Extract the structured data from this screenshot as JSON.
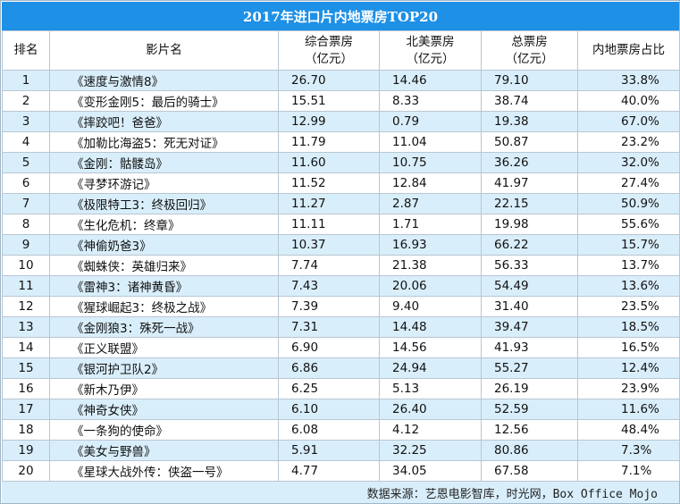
{
  "title": "2017年进口片内地票房TOP20",
  "headers": {
    "rank": "排名",
    "film": "影片名",
    "total_cn_l1": "综合票房",
    "total_cn_l2": "（亿元）",
    "na_l1": "北美票房",
    "na_l2": "（亿元）",
    "world_l1": "总票房",
    "world_l2": "（亿元）",
    "share": "内地票房占比"
  },
  "rows": [
    {
      "rank": "1",
      "film": "《速度与激情8》",
      "cn": "26.70",
      "na": "14.46",
      "total": "79.10",
      "share": "33.8%"
    },
    {
      "rank": "2",
      "film": "《变形金刚5：最后的骑士》",
      "cn": "15.51",
      "na": "8.33",
      "total": "38.74",
      "share": "40.0%"
    },
    {
      "rank": "3",
      "film": "《摔跤吧！爸爸》",
      "cn": "12.99",
      "na": "0.79",
      "total": "19.38",
      "share": "67.0%"
    },
    {
      "rank": "4",
      "film": "《加勒比海盗5：死无对证》",
      "cn": "11.79",
      "na": "11.04",
      "total": "50.87",
      "share": "23.2%"
    },
    {
      "rank": "5",
      "film": "《金刚：骷髅岛》",
      "cn": "11.60",
      "na": "10.75",
      "total": "36.26",
      "share": "32.0%"
    },
    {
      "rank": "6",
      "film": "《寻梦环游记》",
      "cn": "11.52",
      "na": "12.84",
      "total": "41.97",
      "share": "27.4%"
    },
    {
      "rank": "7",
      "film": "《极限特工3：终极回归》",
      "cn": "11.27",
      "na": "2.87",
      "total": "22.15",
      "share": "50.9%"
    },
    {
      "rank": "8",
      "film": "《生化危机：终章》",
      "cn": "11.11",
      "na": "1.71",
      "total": "19.98",
      "share": "55.6%"
    },
    {
      "rank": "9",
      "film": "《神偷奶爸3》",
      "cn": "10.37",
      "na": "16.93",
      "total": "66.22",
      "share": "15.7%"
    },
    {
      "rank": "10",
      "film": "《蜘蛛侠：英雄归来》",
      "cn": "7.74",
      "na": "21.38",
      "total": "56.33",
      "share": "13.7%"
    },
    {
      "rank": "11",
      "film": "《雷神3：诸神黄昏》",
      "cn": "7.43",
      "na": "20.06",
      "total": "54.49",
      "share": "13.6%"
    },
    {
      "rank": "12",
      "film": "《猩球崛起3：终极之战》",
      "cn": "7.39",
      "na": "9.40",
      "total": "31.40",
      "share": "23.5%"
    },
    {
      "rank": "13",
      "film": "《金刚狼3：殊死一战》",
      "cn": "7.31",
      "na": "14.48",
      "total": "39.47",
      "share": "18.5%"
    },
    {
      "rank": "14",
      "film": "《正义联盟》",
      "cn": "6.90",
      "na": "14.56",
      "total": "41.93",
      "share": "16.5%"
    },
    {
      "rank": "15",
      "film": "《银河护卫队2》",
      "cn": "6.86",
      "na": "24.94",
      "total": "55.27",
      "share": "12.4%"
    },
    {
      "rank": "16",
      "film": "《新木乃伊》",
      "cn": "6.25",
      "na": "5.13",
      "total": "26.19",
      "share": "23.9%"
    },
    {
      "rank": "17",
      "film": "《神奇女侠》",
      "cn": "6.10",
      "na": "26.40",
      "total": "52.59",
      "share": "11.6%"
    },
    {
      "rank": "18",
      "film": "《一条狗的使命》",
      "cn": "6.08",
      "na": "4.12",
      "total": "12.56",
      "share": "48.4%"
    },
    {
      "rank": "19",
      "film": "《美女与野兽》",
      "cn": "5.91",
      "na": "32.25",
      "total": "80.86",
      "share": "7.3%"
    },
    {
      "rank": "20",
      "film": "《星球大战外传：侠盗一号》",
      "cn": "4.77",
      "na": "34.05",
      "total": "67.58",
      "share": "7.1%"
    }
  ],
  "source": "数据来源：艺恩电影智库，时光网，Box Office Mojo",
  "colors": {
    "title_bg": "#1e90e6",
    "title_text": "#ffffff",
    "stripe": "#d9eefb",
    "border": "#b8c6d2"
  }
}
